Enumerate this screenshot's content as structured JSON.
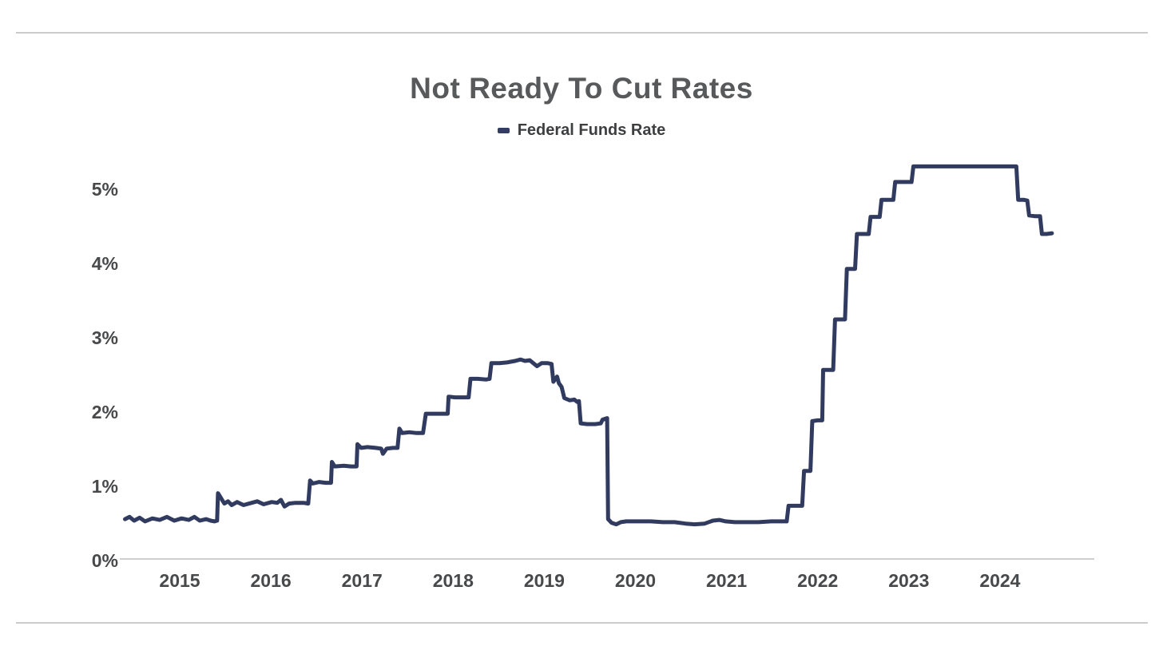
{
  "page": {
    "background_color": "#ffffff",
    "divider_color": "#cbcbcb"
  },
  "chart": {
    "title": "Not Ready To Cut Rates",
    "legend": {
      "label": "Federal Funds Rate",
      "swatch_color": "#333d63"
    },
    "axis_color": "#cfcfcf",
    "tick_color": "#48494b",
    "line_color": "#313b5f"
  },
  "chart_data": {
    "type": "line",
    "title": "Not Ready To Cut Rates",
    "xlabel": "",
    "ylabel": "",
    "grid": false,
    "legend_position": "top",
    "xlim": [
      2014.85,
      2025.5
    ],
    "ylim": [
      0,
      5.6
    ],
    "x_ticks": [
      {
        "value": 2015,
        "label": "2015"
      },
      {
        "value": 2016,
        "label": "2016"
      },
      {
        "value": 2017,
        "label": "2017"
      },
      {
        "value": 2018,
        "label": "2018"
      },
      {
        "value": 2019,
        "label": "2019"
      },
      {
        "value": 2020,
        "label": "2020"
      },
      {
        "value": 2021,
        "label": "2021"
      },
      {
        "value": 2022,
        "label": "2022"
      },
      {
        "value": 2023,
        "label": "2023"
      },
      {
        "value": 2024,
        "label": "2024"
      }
    ],
    "y_ticks": [
      {
        "value": 0,
        "label": "0%"
      },
      {
        "value": 1,
        "label": "1%"
      },
      {
        "value": 2,
        "label": "2%"
      },
      {
        "value": 3,
        "label": "3%"
      },
      {
        "value": 4,
        "label": "4%"
      },
      {
        "value": 5,
        "label": "5%"
      }
    ],
    "series": [
      {
        "name": "Federal Funds Rate",
        "color": "#313b5f",
        "points": [
          [
            2014.9,
            0.59
          ],
          [
            2014.95,
            0.62
          ],
          [
            2015.0,
            0.57
          ],
          [
            2015.06,
            0.61
          ],
          [
            2015.12,
            0.56
          ],
          [
            2015.2,
            0.6
          ],
          [
            2015.28,
            0.58
          ],
          [
            2015.36,
            0.62
          ],
          [
            2015.44,
            0.57
          ],
          [
            2015.52,
            0.6
          ],
          [
            2015.6,
            0.58
          ],
          [
            2015.66,
            0.62
          ],
          [
            2015.72,
            0.57
          ],
          [
            2015.79,
            0.59
          ],
          [
            2015.84,
            0.57
          ],
          [
            2015.88,
            0.56
          ],
          [
            2015.91,
            0.57
          ],
          [
            2015.92,
            0.94
          ],
          [
            2015.97,
            0.84
          ],
          [
            2015.99,
            0.8
          ],
          [
            2016.03,
            0.83
          ],
          [
            2016.07,
            0.78
          ],
          [
            2016.13,
            0.82
          ],
          [
            2016.2,
            0.78
          ],
          [
            2016.29,
            0.81
          ],
          [
            2016.35,
            0.83
          ],
          [
            2016.42,
            0.79
          ],
          [
            2016.51,
            0.82
          ],
          [
            2016.57,
            0.81
          ],
          [
            2016.61,
            0.85
          ],
          [
            2016.65,
            0.76
          ],
          [
            2016.7,
            0.8
          ],
          [
            2016.77,
            0.81
          ],
          [
            2016.86,
            0.81
          ],
          [
            2016.91,
            0.8
          ],
          [
            2016.93,
            1.11
          ],
          [
            2016.96,
            1.07
          ],
          [
            2017.03,
            1.09
          ],
          [
            2017.1,
            1.08
          ],
          [
            2017.16,
            1.08
          ],
          [
            2017.17,
            1.36
          ],
          [
            2017.2,
            1.3
          ],
          [
            2017.3,
            1.31
          ],
          [
            2017.38,
            1.3
          ],
          [
            2017.44,
            1.3
          ],
          [
            2017.45,
            1.6
          ],
          [
            2017.49,
            1.55
          ],
          [
            2017.56,
            1.56
          ],
          [
            2017.65,
            1.55
          ],
          [
            2017.71,
            1.54
          ],
          [
            2017.73,
            1.47
          ],
          [
            2017.77,
            1.54
          ],
          [
            2017.84,
            1.55
          ],
          [
            2017.89,
            1.55
          ],
          [
            2017.91,
            1.81
          ],
          [
            2017.94,
            1.75
          ],
          [
            2018.02,
            1.76
          ],
          [
            2018.1,
            1.75
          ],
          [
            2018.17,
            1.75
          ],
          [
            2018.2,
            2.01
          ],
          [
            2018.28,
            2.01
          ],
          [
            2018.37,
            2.01
          ],
          [
            2018.44,
            2.01
          ],
          [
            2018.45,
            2.24
          ],
          [
            2018.52,
            2.23
          ],
          [
            2018.61,
            2.23
          ],
          [
            2018.67,
            2.23
          ],
          [
            2018.69,
            2.48
          ],
          [
            2018.77,
            2.48
          ],
          [
            2018.86,
            2.47
          ],
          [
            2018.9,
            2.48
          ],
          [
            2018.92,
            2.69
          ],
          [
            2019.01,
            2.69
          ],
          [
            2019.09,
            2.7
          ],
          [
            2019.18,
            2.72
          ],
          [
            2019.24,
            2.74
          ],
          [
            2019.29,
            2.72
          ],
          [
            2019.34,
            2.73
          ],
          [
            2019.38,
            2.69
          ],
          [
            2019.42,
            2.65
          ],
          [
            2019.47,
            2.69
          ],
          [
            2019.54,
            2.69
          ],
          [
            2019.58,
            2.68
          ],
          [
            2019.6,
            2.44
          ],
          [
            2019.64,
            2.51
          ],
          [
            2019.66,
            2.42
          ],
          [
            2019.69,
            2.37
          ],
          [
            2019.72,
            2.22
          ],
          [
            2019.78,
            2.19
          ],
          [
            2019.83,
            2.2
          ],
          [
            2019.86,
            2.17
          ],
          [
            2019.88,
            2.18
          ],
          [
            2019.9,
            1.88
          ],
          [
            2019.97,
            1.87
          ],
          [
            2020.06,
            1.87
          ],
          [
            2020.12,
            1.88
          ],
          [
            2020.14,
            1.93
          ],
          [
            2020.19,
            1.95
          ],
          [
            2020.2,
            0.59
          ],
          [
            2020.24,
            0.54
          ],
          [
            2020.29,
            0.52
          ],
          [
            2020.34,
            0.55
          ],
          [
            2020.4,
            0.56
          ],
          [
            2020.53,
            0.56
          ],
          [
            2020.67,
            0.56
          ],
          [
            2020.8,
            0.55
          ],
          [
            2020.93,
            0.55
          ],
          [
            2021.05,
            0.53
          ],
          [
            2021.15,
            0.52
          ],
          [
            2021.26,
            0.53
          ],
          [
            2021.35,
            0.57
          ],
          [
            2021.42,
            0.58
          ],
          [
            2021.49,
            0.56
          ],
          [
            2021.59,
            0.55
          ],
          [
            2021.72,
            0.55
          ],
          [
            2021.85,
            0.55
          ],
          [
            2021.99,
            0.56
          ],
          [
            2022.07,
            0.56
          ],
          [
            2022.16,
            0.56
          ],
          [
            2022.18,
            0.77
          ],
          [
            2022.25,
            0.77
          ],
          [
            2022.33,
            0.77
          ],
          [
            2022.35,
            1.24
          ],
          [
            2022.39,
            1.24
          ],
          [
            2022.42,
            1.24
          ],
          [
            2022.44,
            1.91
          ],
          [
            2022.5,
            1.92
          ],
          [
            2022.55,
            1.92
          ],
          [
            2022.56,
            2.6
          ],
          [
            2022.62,
            2.6
          ],
          [
            2022.67,
            2.6
          ],
          [
            2022.69,
            3.28
          ],
          [
            2022.75,
            3.28
          ],
          [
            2022.8,
            3.28
          ],
          [
            2022.82,
            3.96
          ],
          [
            2022.87,
            3.96
          ],
          [
            2022.91,
            3.96
          ],
          [
            2022.93,
            4.43
          ],
          [
            2022.99,
            4.43
          ],
          [
            2023.06,
            4.43
          ],
          [
            2023.08,
            4.66
          ],
          [
            2023.13,
            4.66
          ],
          [
            2023.18,
            4.66
          ],
          [
            2023.2,
            4.89
          ],
          [
            2023.26,
            4.89
          ],
          [
            2023.33,
            4.89
          ],
          [
            2023.35,
            5.13
          ],
          [
            2023.43,
            5.13
          ],
          [
            2023.53,
            5.13
          ],
          [
            2023.55,
            5.34
          ],
          [
            2023.75,
            5.34
          ],
          [
            2024.0,
            5.34
          ],
          [
            2024.25,
            5.34
          ],
          [
            2024.5,
            5.34
          ],
          [
            2024.68,
            5.34
          ],
          [
            2024.7,
            4.89
          ],
          [
            2024.76,
            4.89
          ],
          [
            2024.8,
            4.88
          ],
          [
            2024.82,
            4.68
          ],
          [
            2024.88,
            4.67
          ],
          [
            2024.94,
            4.67
          ],
          [
            2024.96,
            4.43
          ],
          [
            2025.01,
            4.43
          ],
          [
            2025.07,
            4.44
          ]
        ]
      }
    ]
  }
}
